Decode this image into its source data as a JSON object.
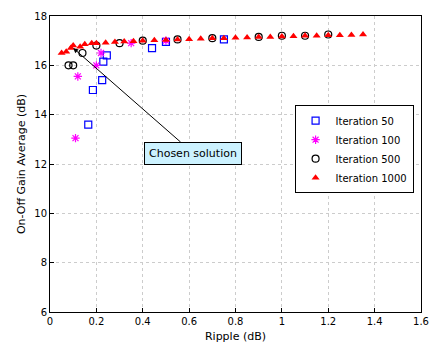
{
  "chart_data": {
    "type": "scatter",
    "x_label": "Ripple (dB)",
    "y_label": "On-Off Gain Average (dB)",
    "xlim": [
      0,
      1.6
    ],
    "xticks": [
      0,
      0.2,
      0.4,
      0.6,
      0.8,
      1,
      1.2,
      1.4,
      1.6
    ],
    "ylim": [
      6,
      18
    ],
    "yticks": [
      6,
      8,
      10,
      12,
      14,
      16,
      18
    ],
    "grid": true,
    "legend": "right",
    "series": [
      {
        "name": "Iteration 50",
        "color": "#0000ff",
        "marker": "square-open",
        "x": [
          0.165,
          0.185,
          0.225,
          0.23,
          0.245,
          0.44,
          0.5,
          0.75
        ],
        "values": [
          13.6,
          15.0,
          15.4,
          16.15,
          16.4,
          16.7,
          16.95,
          17.05
        ]
      },
      {
        "name": "Iteration 100",
        "color": "#ff00ff",
        "marker": "asterisk-open",
        "x": [
          0.11,
          0.12,
          0.2,
          0.22,
          0.35,
          0.5
        ],
        "values": [
          13.05,
          15.55,
          16.0,
          16.5,
          16.9,
          17.0
        ]
      },
      {
        "name": "Iteration 500",
        "color": "#000000",
        "marker": "circle-open",
        "x": [
          0.08,
          0.1,
          0.14,
          0.2,
          0.3,
          0.4,
          0.55,
          0.7,
          0.9,
          1.0,
          1.1,
          1.2
        ],
        "values": [
          16.0,
          16.0,
          16.5,
          16.8,
          16.9,
          17.0,
          17.05,
          17.1,
          17.15,
          17.2,
          17.2,
          17.25
        ]
      },
      {
        "name": "Iteration 1000",
        "color": "#ff0000",
        "marker": "triangle-up",
        "x": [
          0.05,
          0.07,
          0.09,
          0.1,
          0.13,
          0.15,
          0.18,
          0.2,
          0.24,
          0.28,
          0.32,
          0.36,
          0.4,
          0.45,
          0.5,
          0.55,
          0.6,
          0.65,
          0.7,
          0.75,
          0.8,
          0.85,
          0.9,
          0.95,
          1.0,
          1.05,
          1.1,
          1.15,
          1.2,
          1.25,
          1.3,
          1.35
        ],
        "values": [
          16.5,
          16.55,
          16.7,
          16.8,
          16.75,
          16.85,
          16.9,
          16.9,
          16.92,
          16.95,
          16.97,
          16.98,
          17.0,
          17.02,
          17.03,
          17.05,
          17.06,
          17.08,
          17.1,
          17.1,
          17.12,
          17.13,
          17.15,
          17.15,
          17.17,
          17.18,
          17.2,
          17.2,
          17.22,
          17.22,
          17.23,
          17.25
        ]
      }
    ],
    "annotations": [
      {
        "text": "Chosen solution",
        "x": 0.1,
        "y": 16.7
      }
    ]
  }
}
